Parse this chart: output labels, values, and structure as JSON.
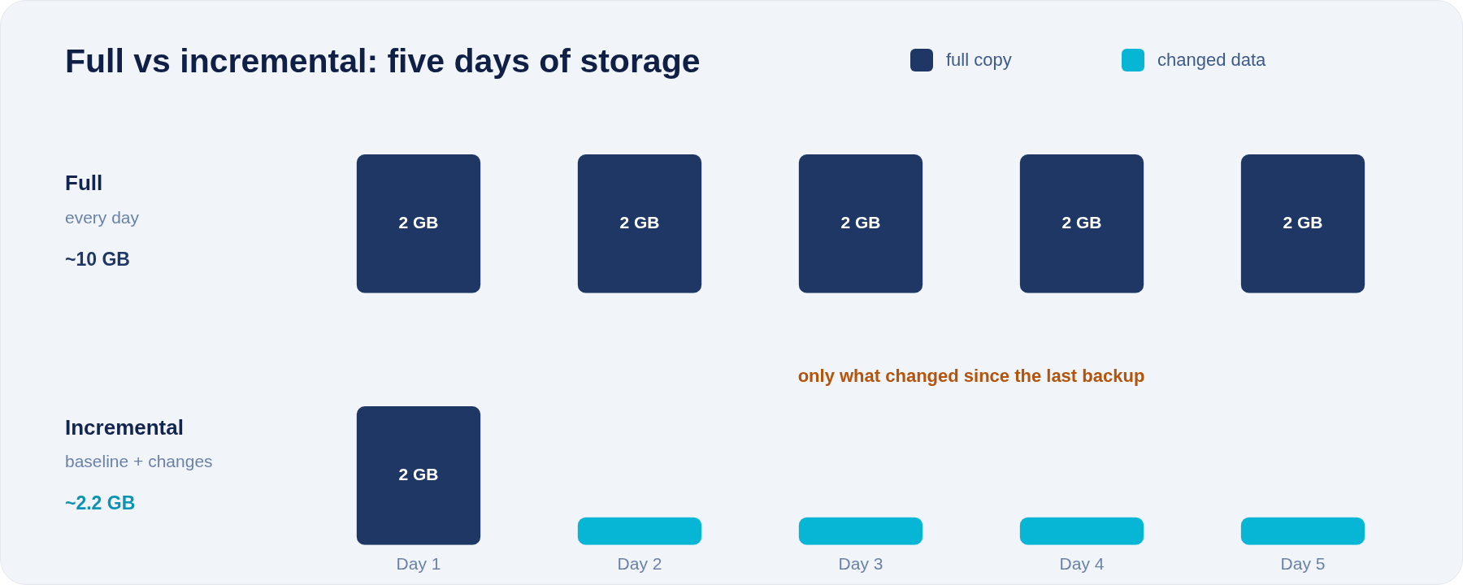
{
  "chart_data": [
    {
      "type": "bar",
      "title": "Full vs incremental: five days of storage",
      "ylabel": "Full",
      "annotations": [
        "every day",
        "~10 GB"
      ],
      "categories": [
        null,
        null,
        null,
        null,
        null
      ],
      "series": [
        {
          "name": "full copy",
          "color": "#1e3765",
          "values": [
            2,
            2,
            2,
            2,
            2
          ],
          "value_labels": [
            "2 GB",
            "2 GB",
            "2 GB",
            "2 GB",
            "2 GB"
          ]
        }
      ],
      "legend": "top right"
    },
    {
      "type": "bar",
      "ylabel": "Incremental",
      "annotations": [
        "baseline + changes",
        "~2.2 GB",
        "only what changed since the last backup"
      ],
      "categories": [
        "Day 1",
        "Day 2",
        "Day 3",
        "Day 4",
        "Day 5"
      ],
      "series": [
        {
          "name": "full copy",
          "color": "#1e3765",
          "values": [
            2,
            null,
            null,
            null,
            null
          ],
          "value_labels": [
            "2 GB",
            null,
            null,
            null,
            null
          ]
        },
        {
          "name": "changed data",
          "color": "#06b6d4",
          "values": [
            null,
            0.4,
            0.4,
            0.4,
            0.4
          ]
        }
      ],
      "legend": "top right"
    }
  ]
}
